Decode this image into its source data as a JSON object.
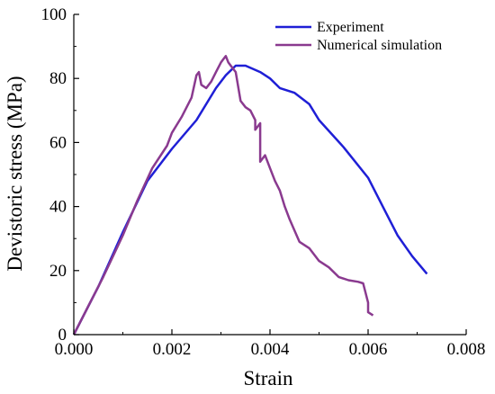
{
  "chart_data": {
    "type": "line",
    "xlabel": "Strain",
    "ylabel": "Devistoric stress (MPa)",
    "xlim": [
      0,
      0.008
    ],
    "ylim": [
      0,
      100
    ],
    "xticks": [
      0,
      0.002,
      0.004,
      0.006,
      0.008
    ],
    "xtick_labels": [
      "0.000",
      "0.002",
      "0.004",
      "0.006",
      "0.008"
    ],
    "yticks": [
      0,
      20,
      40,
      60,
      80,
      100
    ],
    "ytick_labels": [
      "0",
      "20",
      "40",
      "60",
      "80",
      "100"
    ],
    "grid": false,
    "legend_position": "top-right",
    "series": [
      {
        "name": "Experiment",
        "color": "#1f1fd6",
        "x": [
          0.0,
          0.0005,
          0.001,
          0.0015,
          0.002,
          0.0025,
          0.0029,
          0.0031,
          0.0033,
          0.0035,
          0.0038,
          0.004,
          0.0042,
          0.0045,
          0.0048,
          0.005,
          0.0055,
          0.006,
          0.0063,
          0.0066,
          0.0069,
          0.0072
        ],
        "y": [
          0,
          15,
          32,
          48,
          58,
          67,
          77,
          81,
          84,
          84,
          82,
          80,
          77,
          75.5,
          72,
          67,
          58.5,
          49,
          40,
          31,
          24.5,
          19
        ]
      },
      {
        "name": "Numerical simulation",
        "color": "#8a3a8f",
        "x": [
          0.0,
          0.0003,
          0.0006,
          0.001,
          0.0013,
          0.0016,
          0.0019,
          0.002,
          0.0022,
          0.0024,
          0.0025,
          0.00255,
          0.0026,
          0.0027,
          0.0028,
          0.0029,
          0.003,
          0.00305,
          0.0031,
          0.00315,
          0.0032,
          0.0033,
          0.0034,
          0.0035,
          0.0036,
          0.0037,
          0.0037,
          0.0038,
          0.0038,
          0.0039,
          0.004,
          0.0041,
          0.0042,
          0.0043,
          0.0044,
          0.0046,
          0.0048,
          0.005,
          0.0052,
          0.0054,
          0.0056,
          0.0058,
          0.0059,
          0.006,
          0.006,
          0.0061
        ],
        "y": [
          0,
          9,
          18,
          31,
          42,
          52,
          59,
          63,
          68,
          74,
          81,
          82,
          78,
          77,
          79,
          82,
          85,
          86,
          87,
          85,
          84,
          82,
          73,
          71,
          70,
          67,
          64,
          66,
          54,
          56,
          52,
          48,
          45,
          40,
          36,
          29,
          27,
          23,
          21,
          18,
          17,
          16.5,
          16,
          10,
          7,
          6
        ]
      }
    ]
  }
}
